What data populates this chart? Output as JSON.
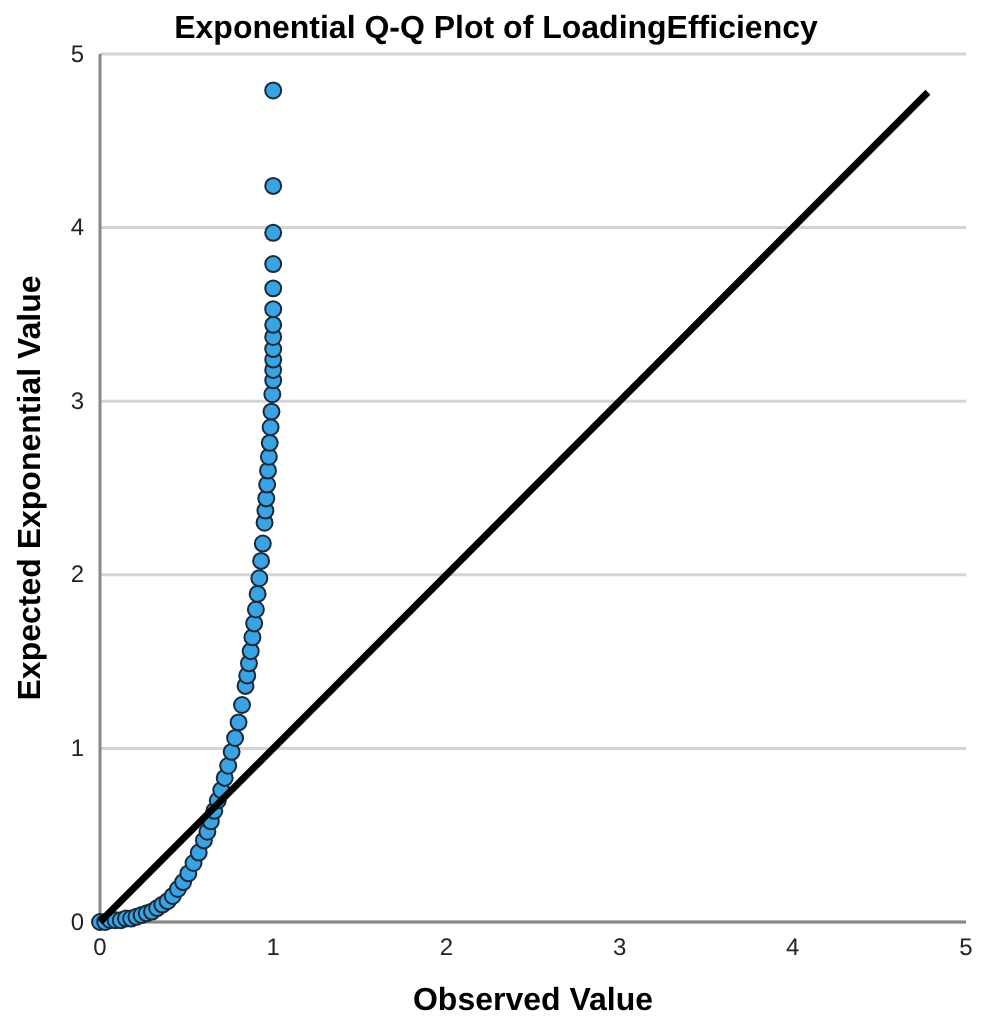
{
  "chart_data": {
    "type": "scatter",
    "title": "Exponential Q-Q Plot of LoadingEfficiency",
    "xlabel": "Observed Value",
    "ylabel": "Expected Exponential Value",
    "xlim": [
      0,
      5
    ],
    "ylim": [
      0,
      5
    ],
    "xticks": [
      0,
      1,
      2,
      3,
      4,
      5
    ],
    "yticks": [
      0,
      1,
      2,
      3,
      4,
      5
    ],
    "grid": "y",
    "series": [
      {
        "color": "#3aa3e3",
        "marker": "circle",
        "x": [
          0,
          0.03,
          0.06,
          0.09,
          0.12,
          0.15,
          0.18,
          0.21,
          0.24,
          0.27,
          0.3,
          0.33,
          0.36,
          0.39,
          0.42,
          0.45,
          0.48,
          0.51,
          0.54,
          0.57,
          0.6,
          0.62,
          0.64,
          0.66,
          0.68,
          0.7,
          0.72,
          0.74,
          0.76,
          0.78,
          0.8,
          0.82,
          0.84,
          0.85,
          0.86,
          0.87,
          0.88,
          0.89,
          0.9,
          0.91,
          0.92,
          0.93,
          0.94,
          0.95,
          0.955,
          0.96,
          0.965,
          0.97,
          0.975,
          0.98,
          0.985,
          0.99,
          0.995,
          1,
          1,
          1,
          1,
          1,
          1,
          1,
          1,
          1,
          1,
          1,
          1
        ],
        "values": [
          0,
          0,
          0.01,
          0.01,
          0.01,
          0.02,
          0.02,
          0.03,
          0.04,
          0.05,
          0.06,
          0.08,
          0.1,
          0.12,
          0.15,
          0.19,
          0.23,
          0.28,
          0.34,
          0.4,
          0.47,
          0.52,
          0.58,
          0.64,
          0.7,
          0.76,
          0.83,
          0.9,
          0.98,
          1.06,
          1.15,
          1.25,
          1.36,
          1.42,
          1.49,
          1.56,
          1.64,
          1.72,
          1.8,
          1.89,
          1.98,
          2.08,
          2.18,
          2.3,
          2.37,
          2.44,
          2.52,
          2.6,
          2.68,
          2.76,
          2.85,
          2.94,
          3.04,
          3.12,
          3.18,
          3.24,
          3.3,
          3.37,
          3.44,
          3.53,
          3.65,
          3.79,
          3.97,
          4.24,
          4.79
        ]
      },
      {
        "type": "line",
        "marker": "none",
        "color": "#000000",
        "x": [
          0,
          4.78
        ],
        "values": [
          0,
          4.78
        ]
      }
    ]
  }
}
